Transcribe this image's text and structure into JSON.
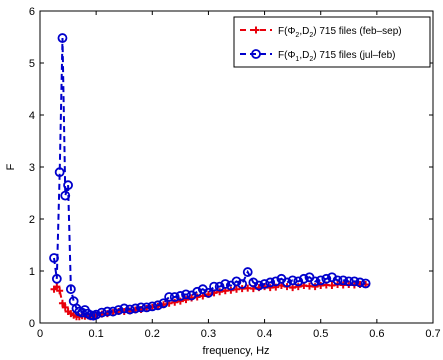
{
  "chart_data": {
    "type": "line",
    "xlabel": "frequency, Hz",
    "ylabel": "F",
    "xlim": [
      0,
      0.7
    ],
    "ylim": [
      0,
      6
    ],
    "xticks": [
      0,
      0.1,
      0.2,
      0.3,
      0.4,
      0.5,
      0.6,
      0.7
    ],
    "yticks": [
      0,
      1,
      2,
      3,
      4,
      5,
      6
    ],
    "xtick_labels": [
      "0",
      "0.1",
      "0.2",
      "0.3",
      "0.4",
      "0.5",
      "0.6",
      "0.7"
    ],
    "ytick_labels": [
      "0",
      "1",
      "2",
      "3",
      "4",
      "5",
      "6"
    ],
    "grid": false,
    "legend_position": "top-right",
    "series": [
      {
        "name": "F(Φ2,D2) 715 files (feb–sep)",
        "legend_label": {
          "pre": "F(Φ",
          "sub1": "2",
          "mid": ",D",
          "sub2": "2",
          "post": ") 715 files (feb–sep)"
        },
        "color": "#e8000b",
        "marker": "plus",
        "line_style": "dashed",
        "x": [
          0.025,
          0.03,
          0.035,
          0.04,
          0.045,
          0.05,
          0.055,
          0.06,
          0.065,
          0.07,
          0.075,
          0.08,
          0.085,
          0.09,
          0.095,
          0.1,
          0.11,
          0.12,
          0.13,
          0.14,
          0.15,
          0.16,
          0.17,
          0.18,
          0.19,
          0.2,
          0.21,
          0.22,
          0.23,
          0.24,
          0.25,
          0.26,
          0.27,
          0.28,
          0.29,
          0.3,
          0.31,
          0.32,
          0.33,
          0.34,
          0.35,
          0.36,
          0.37,
          0.38,
          0.39,
          0.4,
          0.41,
          0.42,
          0.43,
          0.44,
          0.45,
          0.46,
          0.47,
          0.48,
          0.49,
          0.5,
          0.51,
          0.52,
          0.53,
          0.54,
          0.55,
          0.56,
          0.57,
          0.58
        ],
        "y": [
          0.65,
          0.7,
          0.62,
          0.38,
          0.3,
          0.22,
          0.18,
          0.15,
          0.12,
          0.12,
          0.14,
          0.13,
          0.14,
          0.12,
          0.13,
          0.15,
          0.17,
          0.18,
          0.2,
          0.22,
          0.22,
          0.23,
          0.25,
          0.26,
          0.28,
          0.3,
          0.32,
          0.35,
          0.38,
          0.4,
          0.42,
          0.45,
          0.48,
          0.5,
          0.52,
          0.55,
          0.58,
          0.6,
          0.62,
          0.63,
          0.65,
          0.66,
          0.67,
          0.66,
          0.68,
          0.7,
          0.68,
          0.69,
          0.72,
          0.7,
          0.68,
          0.7,
          0.72,
          0.71,
          0.7,
          0.72,
          0.73,
          0.72,
          0.74,
          0.73,
          0.74,
          0.73,
          0.74,
          0.74
        ]
      },
      {
        "name": "F(Φ1,D2) 715 files (jul–feb)",
        "legend_label": {
          "pre": "F(Φ",
          "sub1": "1",
          "mid": ",D",
          "sub2": "2",
          "post": ") 715 files (jul–feb)"
        },
        "color": "#0000cc",
        "marker": "circle",
        "line_style": "dashed",
        "x": [
          0.025,
          0.03,
          0.035,
          0.04,
          0.045,
          0.05,
          0.055,
          0.06,
          0.065,
          0.07,
          0.075,
          0.08,
          0.085,
          0.09,
          0.095,
          0.1,
          0.11,
          0.12,
          0.13,
          0.14,
          0.15,
          0.16,
          0.17,
          0.18,
          0.19,
          0.2,
          0.21,
          0.22,
          0.23,
          0.24,
          0.25,
          0.26,
          0.27,
          0.28,
          0.29,
          0.3,
          0.31,
          0.32,
          0.33,
          0.34,
          0.35,
          0.36,
          0.37,
          0.38,
          0.39,
          0.4,
          0.41,
          0.42,
          0.43,
          0.44,
          0.45,
          0.46,
          0.47,
          0.48,
          0.49,
          0.5,
          0.51,
          0.52,
          0.53,
          0.54,
          0.55,
          0.56,
          0.57,
          0.58
        ],
        "y": [
          1.25,
          0.85,
          2.9,
          5.48,
          2.45,
          2.65,
          0.65,
          0.42,
          0.28,
          0.22,
          0.2,
          0.25,
          0.18,
          0.15,
          0.14,
          0.16,
          0.2,
          0.22,
          0.22,
          0.25,
          0.28,
          0.26,
          0.28,
          0.3,
          0.3,
          0.32,
          0.34,
          0.38,
          0.5,
          0.5,
          0.52,
          0.55,
          0.53,
          0.6,
          0.65,
          0.58,
          0.7,
          0.7,
          0.75,
          0.72,
          0.8,
          0.75,
          0.98,
          0.78,
          0.72,
          0.75,
          0.78,
          0.8,
          0.85,
          0.78,
          0.82,
          0.8,
          0.85,
          0.88,
          0.8,
          0.82,
          0.85,
          0.88,
          0.82,
          0.82,
          0.8,
          0.8,
          0.78,
          0.76
        ]
      }
    ]
  }
}
